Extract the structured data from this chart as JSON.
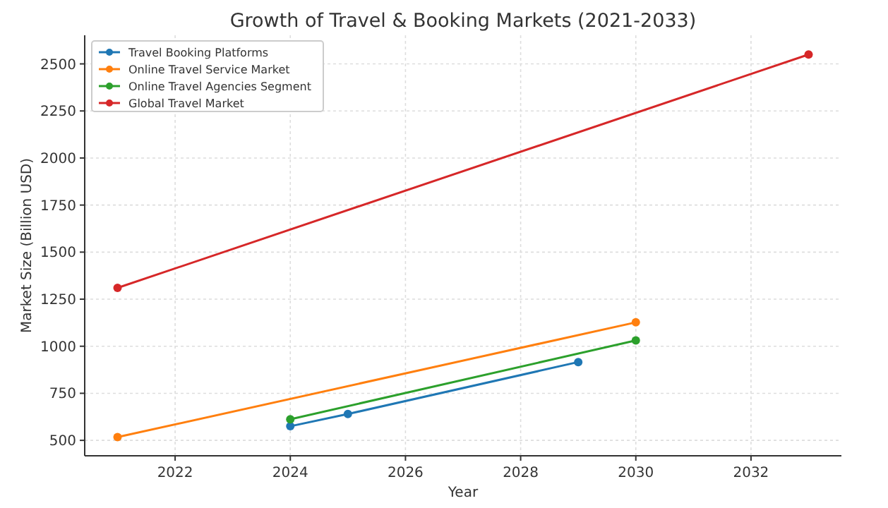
{
  "chart_data": {
    "type": "line",
    "title": "Growth of Travel & Booking Markets (2021-2033)",
    "xlabel": "Year",
    "ylabel": "Market Size (Billion USD)",
    "series": [
      {
        "name": "Travel Booking Platforms",
        "color": "#1f77b4",
        "x": [
          2024,
          2025,
          2029
        ],
        "values": [
          575,
          640,
          916
        ]
      },
      {
        "name": "Online Travel Service Market",
        "color": "#ff7f0e",
        "x": [
          2021,
          2030
        ],
        "values": [
          517,
          1127
        ]
      },
      {
        "name": "Online Travel Agencies Segment",
        "color": "#2ca02c",
        "x": [
          2024,
          2030
        ],
        "values": [
          612,
          1031
        ]
      },
      {
        "name": "Global Travel Market",
        "color": "#d62728",
        "x": [
          2021,
          2033
        ],
        "values": [
          1310,
          2550
        ]
      }
    ],
    "xlim": [
      2020.43,
      2033.57
    ],
    "xticks": [
      2022,
      2024,
      2026,
      2028,
      2030,
      2032
    ],
    "ylim": [
      418,
      2652
    ],
    "yticks": [
      500,
      750,
      1000,
      1250,
      1500,
      1750,
      2000,
      2250,
      2500
    ],
    "grid": true,
    "legend": "top left",
    "marker": "circle",
    "line_style": "solid"
  }
}
